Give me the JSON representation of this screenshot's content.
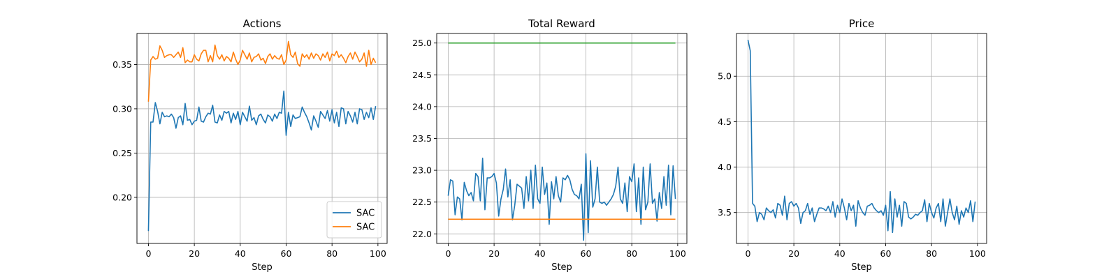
{
  "chart_data": [
    {
      "type": "line",
      "title": "Actions",
      "xlabel": "Step",
      "ylabel": "",
      "xlim": [
        -5,
        104
      ],
      "ylim": [
        0.148,
        0.385
      ],
      "xticks": [
        0,
        20,
        40,
        60,
        80,
        100
      ],
      "yticks": [
        0.2,
        0.25,
        0.3,
        0.35
      ],
      "ytick_labels": [
        "0.20",
        "0.25",
        "0.30",
        "0.35"
      ],
      "grid": true,
      "legend": "lower-right",
      "series": [
        {
          "name": "SAC",
          "color": "#1f77b4",
          "values": [
            0.162,
            0.285,
            0.285,
            0.307,
            0.297,
            0.283,
            0.296,
            0.291,
            0.292,
            0.291,
            0.294,
            0.29,
            0.278,
            0.29,
            0.292,
            0.282,
            0.306,
            0.287,
            0.288,
            0.282,
            0.286,
            0.287,
            0.302,
            0.286,
            0.285,
            0.291,
            0.295,
            0.294,
            0.304,
            0.285,
            0.284,
            0.293,
            0.287,
            0.297,
            0.295,
            0.297,
            0.284,
            0.295,
            0.288,
            0.297,
            0.282,
            0.296,
            0.291,
            0.286,
            0.303,
            0.287,
            0.29,
            0.282,
            0.292,
            0.294,
            0.288,
            0.284,
            0.293,
            0.291,
            0.286,
            0.294,
            0.289,
            0.296,
            0.295,
            0.32,
            0.27,
            0.296,
            0.28,
            0.293,
            0.289,
            0.29,
            0.291,
            0.302,
            0.296,
            0.291,
            0.284,
            0.276,
            0.292,
            0.286,
            0.279,
            0.297,
            0.293,
            0.289,
            0.298,
            0.286,
            0.299,
            0.284,
            0.296,
            0.28,
            0.301,
            0.3,
            0.283,
            0.297,
            0.292,
            0.285,
            0.296,
            0.283,
            0.3,
            0.299,
            0.288,
            0.296,
            0.29,
            0.301,
            0.288,
            0.303
          ]
        },
        {
          "name": "SAC",
          "color": "#ff7f0e",
          "values": [
            0.308,
            0.355,
            0.359,
            0.356,
            0.357,
            0.371,
            0.366,
            0.358,
            0.36,
            0.361,
            0.361,
            0.358,
            0.361,
            0.364,
            0.358,
            0.369,
            0.352,
            0.355,
            0.353,
            0.353,
            0.361,
            0.356,
            0.354,
            0.362,
            0.366,
            0.366,
            0.353,
            0.36,
            0.353,
            0.372,
            0.36,
            0.356,
            0.361,
            0.354,
            0.359,
            0.357,
            0.353,
            0.364,
            0.356,
            0.35,
            0.355,
            0.366,
            0.361,
            0.356,
            0.363,
            0.353,
            0.358,
            0.359,
            0.362,
            0.355,
            0.357,
            0.351,
            0.359,
            0.362,
            0.356,
            0.36,
            0.357,
            0.356,
            0.361,
            0.35,
            0.355,
            0.376,
            0.361,
            0.358,
            0.364,
            0.351,
            0.348,
            0.362,
            0.358,
            0.361,
            0.356,
            0.363,
            0.357,
            0.362,
            0.36,
            0.355,
            0.362,
            0.358,
            0.364,
            0.354,
            0.362,
            0.36,
            0.365,
            0.358,
            0.361,
            0.357,
            0.352,
            0.359,
            0.363,
            0.356,
            0.364,
            0.359,
            0.353,
            0.356,
            0.363,
            0.348,
            0.366,
            0.35,
            0.357,
            0.352
          ]
        }
      ]
    },
    {
      "type": "line",
      "title": "Total Reward",
      "xlabel": "Step",
      "ylabel": "",
      "xlim": [
        -5,
        104
      ],
      "ylim": [
        21.85,
        25.15
      ],
      "xticks": [
        0,
        20,
        40,
        60,
        80,
        100
      ],
      "yticks": [
        22.0,
        22.5,
        23.0,
        23.5,
        24.0,
        24.5,
        25.0
      ],
      "ytick_labels": [
        "22.0",
        "22.5",
        "23.0",
        "23.5",
        "24.0",
        "24.5",
        "25.0"
      ],
      "grid": true,
      "legend": "",
      "series": [
        {
          "name": "",
          "color": "#1f77b4",
          "values": [
            22.6,
            22.85,
            22.83,
            22.3,
            22.58,
            22.55,
            22.22,
            22.81,
            22.68,
            22.6,
            22.65,
            22.52,
            22.95,
            22.9,
            22.52,
            23.19,
            22.38,
            22.88,
            22.88,
            22.9,
            22.95,
            22.8,
            22.28,
            22.55,
            22.7,
            23.02,
            22.58,
            22.85,
            22.22,
            22.45,
            22.78,
            22.75,
            22.72,
            22.4,
            22.9,
            22.52,
            23.0,
            22.4,
            23.08,
            22.55,
            22.48,
            23.05,
            22.62,
            22.8,
            22.15,
            22.82,
            22.55,
            22.9,
            22.6,
            22.5,
            22.88,
            22.85,
            22.92,
            22.85,
            22.7,
            22.62,
            22.6,
            22.55,
            22.78,
            21.9,
            23.26,
            22.02,
            23.15,
            22.42,
            22.55,
            23.05,
            22.5,
            22.48,
            22.5,
            22.45,
            22.5,
            22.55,
            22.62,
            22.75,
            23.05,
            22.55,
            22.48,
            22.8,
            22.35,
            22.9,
            22.82,
            23.1,
            22.35,
            22.88,
            22.15,
            23.05,
            22.38,
            22.5,
            23.1,
            22.48,
            22.55,
            22.2,
            22.65,
            22.4,
            22.9,
            22.45,
            23.08,
            22.3,
            23.07,
            22.55
          ]
        },
        {
          "name": "",
          "color": "#ff7f0e",
          "values": [
            22.23,
            22.23
          ]
        },
        {
          "name": "",
          "color": "#2ca02c",
          "values": [
            25.0,
            25.0
          ]
        }
      ]
    },
    {
      "type": "line",
      "title": "Price",
      "xlabel": "Step",
      "ylabel": "",
      "xlim": [
        -5,
        104
      ],
      "ylim": [
        3.16,
        5.47
      ],
      "xticks": [
        0,
        20,
        40,
        60,
        80,
        100
      ],
      "yticks": [
        3.5,
        4.0,
        4.5,
        5.0
      ],
      "ytick_labels": [
        "3.5",
        "4.0",
        "4.5",
        "5.0"
      ],
      "grid": true,
      "legend": "",
      "series": [
        {
          "name": "",
          "color": "#1f77b4",
          "values": [
            5.4,
            5.28,
            3.6,
            3.57,
            3.4,
            3.5,
            3.48,
            3.42,
            3.55,
            3.52,
            3.5,
            3.53,
            3.44,
            3.6,
            3.58,
            3.47,
            3.68,
            3.42,
            3.6,
            3.62,
            3.57,
            3.6,
            3.55,
            3.38,
            3.5,
            3.52,
            3.6,
            3.48,
            3.55,
            3.4,
            3.48,
            3.55,
            3.55,
            3.54,
            3.52,
            3.57,
            3.5,
            3.62,
            3.45,
            3.58,
            3.5,
            3.65,
            3.55,
            3.42,
            3.6,
            3.52,
            3.58,
            3.35,
            3.63,
            3.55,
            3.5,
            3.47,
            3.57,
            3.58,
            3.6,
            3.55,
            3.52,
            3.5,
            3.52,
            3.47,
            3.58,
            3.3,
            3.73,
            3.28,
            3.65,
            3.45,
            3.58,
            3.35,
            3.62,
            3.6,
            3.45,
            3.43,
            3.45,
            3.48,
            3.47,
            3.5,
            3.52,
            3.64,
            3.4,
            3.6,
            3.5,
            3.44,
            3.55,
            3.6,
            3.4,
            3.65,
            3.35,
            3.5,
            3.65,
            3.5,
            3.42,
            3.57,
            3.37,
            3.52,
            3.45,
            3.55,
            3.5,
            3.63,
            3.4,
            3.62
          ]
        }
      ]
    }
  ]
}
